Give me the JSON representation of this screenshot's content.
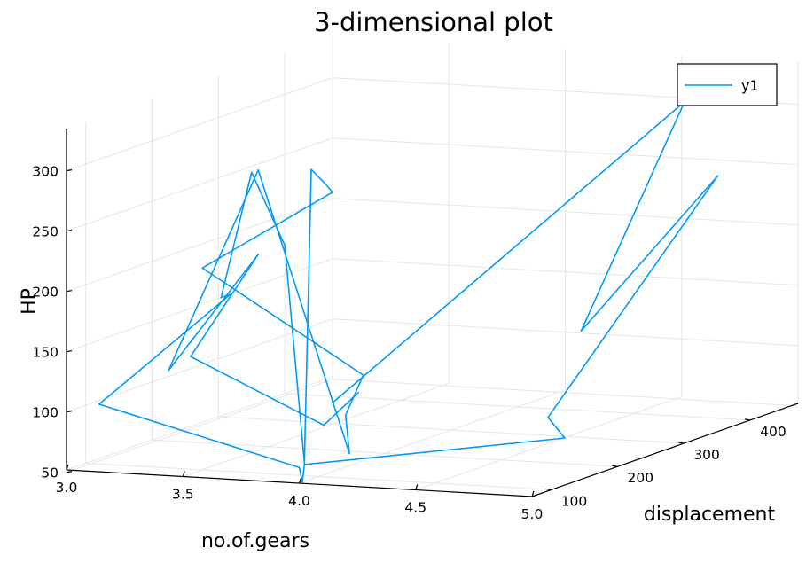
{
  "chart_data": {
    "type": "line3d",
    "title": "3-dimensional plot",
    "xlabel": "no.of.gears",
    "ylabel": "displacement",
    "zlabel": "HP",
    "xticks": [
      "3.0",
      "3.5",
      "4.0",
      "4.5",
      "5.0"
    ],
    "yticks": [
      "100",
      "200",
      "300",
      "400"
    ],
    "zticks": [
      "50",
      "100",
      "150",
      "200",
      "250",
      "300"
    ],
    "xlim": [
      3.0,
      5.0
    ],
    "ylim": [
      71,
      472
    ],
    "zlim": [
      52,
      335
    ],
    "grid": true,
    "legend_position": "top-right",
    "series": [
      {
        "name": "y1",
        "color": "#009af9",
        "points": [
          [
            4,
            160,
            110
          ],
          [
            4,
            160,
            110
          ],
          [
            4,
            108,
            93
          ],
          [
            3,
            258,
            110
          ],
          [
            3,
            360,
            175
          ],
          [
            3,
            225,
            105
          ],
          [
            3,
            360,
            245
          ],
          [
            4,
            146.7,
            62
          ],
          [
            4,
            140.8,
            95
          ],
          [
            4,
            167.6,
            123
          ],
          [
            4,
            167.6,
            123
          ],
          [
            3,
            275.8,
            180
          ],
          [
            3,
            275.8,
            180
          ],
          [
            3,
            275.8,
            180
          ],
          [
            3,
            472,
            205
          ],
          [
            3,
            460,
            215
          ],
          [
            3,
            440,
            230
          ],
          [
            4,
            78.7,
            66
          ],
          [
            4,
            75.7,
            52
          ],
          [
            4,
            71.1,
            65
          ],
          [
            3,
            120.1,
            97
          ],
          [
            3,
            318,
            150
          ],
          [
            3,
            304,
            150
          ],
          [
            3,
            350,
            245
          ],
          [
            3,
            400,
            175
          ],
          [
            4,
            79,
            66
          ],
          [
            5,
            120.3,
            91
          ],
          [
            5,
            95.1,
            113
          ],
          [
            5,
            351,
            264
          ],
          [
            5,
            145,
            175
          ],
          [
            5,
            301,
            335
          ],
          [
            4,
            121,
            109
          ]
        ]
      }
    ]
  }
}
